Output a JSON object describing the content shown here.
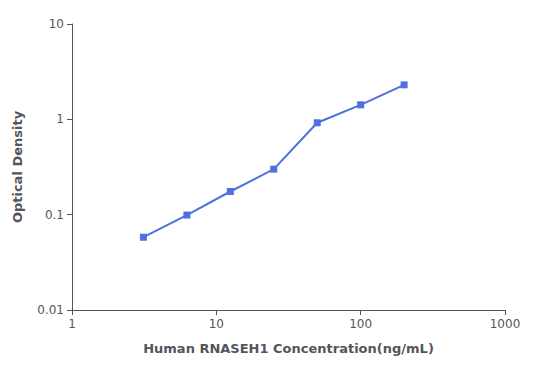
{
  "chart_data": {
    "type": "line",
    "x": [
      3.125,
      6.25,
      12.5,
      25,
      50,
      100,
      200
    ],
    "values": [
      0.058,
      0.099,
      0.175,
      0.3,
      0.92,
      1.42,
      2.3
    ],
    "xlabel": "Human RNASEH1 Concentration(ng/mL)",
    "ylabel": "Optical Density",
    "xlim": [
      1,
      1000
    ],
    "ylim": [
      0.01,
      10
    ],
    "xticks": [
      1,
      10,
      100,
      1000
    ],
    "yticks": [
      0.01,
      0.1,
      1,
      10
    ],
    "log": true,
    "marker": "square",
    "grid": false
  }
}
